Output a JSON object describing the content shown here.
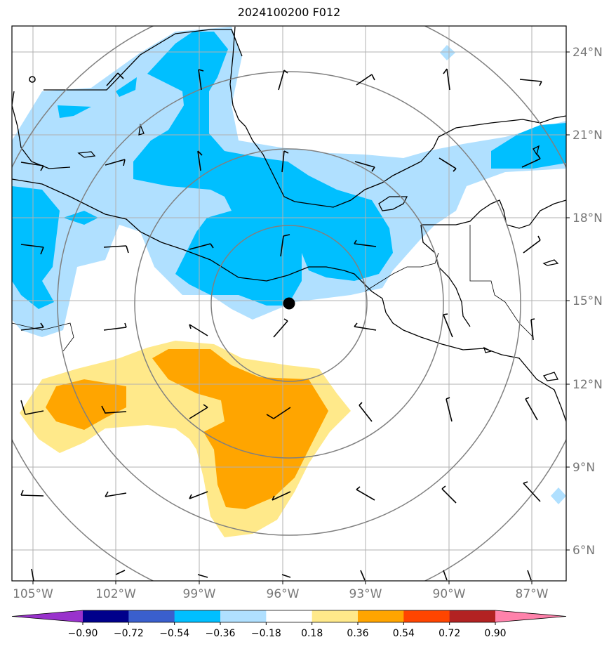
{
  "title": "2024100200 F012",
  "map": {
    "lon_range": [
      -105.75,
      -85.75
    ],
    "lat_range": [
      5.0,
      25.0
    ],
    "lat_ticks": [
      "24°N",
      "21°N",
      "18°N",
      "15°N",
      "12°N",
      "9°N",
      "6°N"
    ],
    "lon_ticks": [
      "105°W",
      "102°W",
      "99°W",
      "96°W",
      "93°W",
      "90°W",
      "87°W"
    ],
    "center_marker": {
      "lon": -95.8,
      "lat": 14.9
    },
    "range_ring_count": 4,
    "colors": {
      "strong_negative": "#00bfff",
      "weak_negative": "#b0e0ff",
      "weak_positive": "#ffe98a",
      "strong_positive": "#ffa500",
      "coast": "#000000",
      "rings": "#808080",
      "grid": "#b0b0b0"
    }
  },
  "colorbar": {
    "levels": [
      "−0.90",
      "−0.72",
      "−0.54",
      "−0.36",
      "−0.18",
      "0.18",
      "0.36",
      "0.54",
      "0.72",
      "0.90"
    ],
    "colors": [
      "#9932cc",
      "#00008b",
      "#3a5fcd",
      "#00bfff",
      "#b0e0ff",
      "#ffffff",
      "#ffe98a",
      "#ffa500",
      "#ff4500",
      "#b22222",
      "#ff82ab"
    ]
  }
}
